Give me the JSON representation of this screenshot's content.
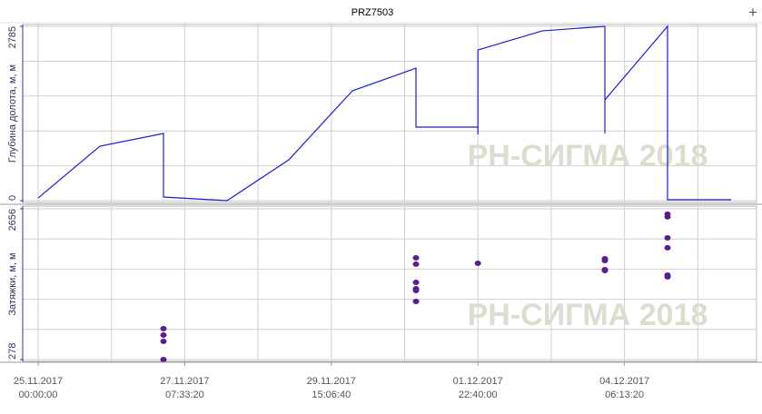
{
  "title": "PRZ7503",
  "chart_data": [
    {
      "type": "line",
      "ylabel": "Глубина долота, м, м",
      "watermark": "РН-СИГМА 2018",
      "color": "#1c1cd6",
      "x": [
        "2017-11-25T00:00:00",
        "2017-11-25T23:24:00",
        "2017-11-26T23:30:00",
        "2017-11-26T23:30:00",
        "2017-11-27T23:36:00",
        "2017-11-28T23:00:00",
        "2017-11-29T23:06:00",
        "2017-11-30T23:12:00",
        "2017-11-30T23:12:00",
        "2017-12-01T22:40:00",
        "2017-12-01T22:40:00",
        "2017-12-01T22:40:00",
        "2017-12-02T23:00:00",
        "2017-12-03T22:47:00",
        "2017-12-03T22:47:00",
        "2017-12-03T22:47:00",
        "2017-12-04T22:32:00",
        "2017-12-04T22:32:00",
        "2017-12-05T22:38:00"
      ],
      "values": [
        43,
        870,
        1073,
        58,
        0,
        653,
        1755,
        2117,
        1175,
        1175,
        1059,
        2407,
        2712,
        2785,
        1073,
        1610,
        2785,
        15,
        15
      ],
      "xlim": [
        "2017-11-24T18:09:00",
        "2017-12-06T08:16:00"
      ],
      "ylim": [
        0,
        2785
      ],
      "yticks": [
        0,
        2785
      ],
      "ygrid": [
        0,
        557,
        1114,
        1671,
        2228,
        2785
      ],
      "xgrid": [
        "2017-11-25T00:00:00",
        "2017-11-26T03:46:40",
        "2017-11-27T07:33:20",
        "2017-11-28T11:20:00",
        "2017-11-29T15:06:40",
        "2017-11-30T18:53:20",
        "2017-12-01T22:40:00",
        "2017-12-03T02:26:40",
        "2017-12-04T06:13:20",
        "2017-12-05T10:00:00"
      ]
    },
    {
      "type": "scatter",
      "ylabel": "Затяжки, м, м",
      "watermark": "РН-СИГМА 2018",
      "color": "#5a1d8c",
      "x": [
        "2017-11-26T23:30:00",
        "2017-11-26T23:30:00",
        "2017-11-26T23:30:00",
        "2017-11-26T23:30:00",
        "2017-11-30T23:12:00",
        "2017-11-30T23:12:00",
        "2017-11-30T23:12:00",
        "2017-11-30T23:12:00",
        "2017-11-30T23:12:00",
        "2017-11-30T23:12:00",
        "2017-12-01T22:40:00",
        "2017-12-03T22:47:00",
        "2017-12-03T22:47:00",
        "2017-12-03T22:47:00",
        "2017-12-03T22:47:00",
        "2017-12-04T22:32:00",
        "2017-12-04T22:32:00",
        "2017-12-04T22:32:00",
        "2017-12-04T22:32:00",
        "2017-12-04T22:32:00",
        "2017-12-04T22:32:00"
      ],
      "values": [
        765,
        665,
        565,
        278,
        1883,
        1783,
        1496,
        1396,
        1367,
        1195,
        1797,
        1869,
        1840,
        1697,
        1682,
        2571,
        2528,
        2198,
        2041,
        1611,
        1582
      ],
      "xlim": [
        "2017-11-24T18:09:00",
        "2017-12-06T08:16:00"
      ],
      "ylim": [
        278,
        2656
      ],
      "yticks": [
        278,
        2656
      ],
      "ygrid": [
        278,
        753.6,
        1229.2,
        1704.8,
        2180.4,
        2656
      ],
      "xgrid": [
        "2017-11-25T00:00:00",
        "2017-11-26T03:46:40",
        "2017-11-27T07:33:20",
        "2017-11-28T11:20:00",
        "2017-11-29T15:06:40",
        "2017-11-30T18:53:20",
        "2017-12-01T22:40:00",
        "2017-12-03T02:26:40",
        "2017-12-04T06:13:20",
        "2017-12-05T10:00:00"
      ],
      "xticks": [
        {
          "value": "2017-11-25T00:00:00",
          "label": "25.11.2017\n00:00:00"
        },
        {
          "value": "2017-11-27T07:33:20",
          "label": "27.11.2017\n07:33:20"
        },
        {
          "value": "2017-11-29T15:06:40",
          "label": "29.11.2017\n15:06:40"
        },
        {
          "value": "2017-12-01T22:40:00",
          "label": "01.12.2017\n22:40:00"
        },
        {
          "value": "2017-12-04T06:13:20",
          "label": "04.12.2017\n06:13:20"
        }
      ]
    }
  ]
}
